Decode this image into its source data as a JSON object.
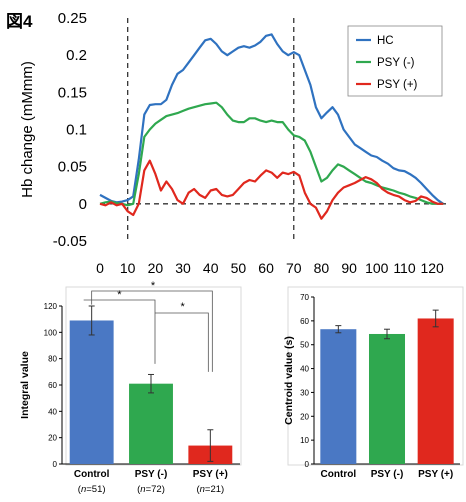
{
  "figure_label": "図4",
  "colors": {
    "hc": "#2f72c0",
    "psy_minus": "#2fa84f",
    "psy_plus": "#e0281e",
    "control_bar": "#4a78c4",
    "axis": "#000000",
    "grid_bar": "#d9d9d9"
  },
  "chart_data": [
    {
      "type": "line",
      "ylabel": "Hb change (mMmm)",
      "xlabel": "",
      "xlim": [
        0,
        125
      ],
      "ylim": [
        -0.05,
        0.25
      ],
      "xticks": [
        "0",
        "10",
        "20",
        "30",
        "40",
        "50",
        "60",
        "70",
        "80",
        "90",
        "100",
        "110",
        "120"
      ],
      "yticks": [
        "-0.05",
        "0",
        "0.05",
        "0.1",
        "0.15",
        "0.2",
        "0.25"
      ],
      "vlines": [
        10,
        70
      ],
      "hline": 0,
      "grid": false,
      "legend_position": "top-right",
      "series": [
        {
          "name": "HC",
          "color": "#2f72c0",
          "x": [
            0,
            2,
            4,
            6,
            8,
            10,
            12,
            14,
            16,
            18,
            20,
            22,
            24,
            26,
            28,
            30,
            32,
            34,
            36,
            38,
            40,
            42,
            44,
            46,
            48,
            50,
            52,
            54,
            56,
            58,
            60,
            62,
            64,
            66,
            68,
            70,
            72,
            74,
            76,
            78,
            80,
            82,
            84,
            86,
            88,
            90,
            92,
            94,
            96,
            98,
            100,
            102,
            104,
            106,
            108,
            110,
            112,
            114,
            116,
            118,
            120,
            122,
            124
          ],
          "y": [
            0.012,
            0.008,
            0.004,
            0.002,
            0.003,
            0.005,
            0.01,
            0.06,
            0.12,
            0.133,
            0.134,
            0.134,
            0.14,
            0.16,
            0.175,
            0.18,
            0.19,
            0.2,
            0.21,
            0.22,
            0.222,
            0.215,
            0.205,
            0.2,
            0.205,
            0.21,
            0.212,
            0.21,
            0.213,
            0.218,
            0.226,
            0.228,
            0.215,
            0.205,
            0.2,
            0.204,
            0.2,
            0.18,
            0.16,
            0.13,
            0.115,
            0.123,
            0.13,
            0.12,
            0.1,
            0.09,
            0.08,
            0.075,
            0.07,
            0.065,
            0.063,
            0.058,
            0.054,
            0.048,
            0.045,
            0.044,
            0.04,
            0.035,
            0.028,
            0.02,
            0.012,
            0.005,
            0.0
          ]
        },
        {
          "name": "PSY (-)",
          "color": "#2fa84f",
          "x": [
            0,
            2,
            4,
            6,
            8,
            10,
            12,
            14,
            16,
            18,
            20,
            22,
            24,
            26,
            28,
            30,
            32,
            34,
            36,
            38,
            40,
            42,
            44,
            46,
            48,
            50,
            52,
            54,
            56,
            58,
            60,
            62,
            64,
            66,
            68,
            70,
            72,
            74,
            76,
            78,
            80,
            82,
            84,
            86,
            88,
            90,
            92,
            94,
            96,
            98,
            100,
            102,
            104,
            106,
            108,
            110,
            112,
            114,
            116,
            118,
            120,
            122,
            124
          ],
          "y": [
            0.0,
            0.002,
            0.003,
            0.001,
            0.0,
            -0.002,
            0.0,
            0.04,
            0.09,
            0.1,
            0.108,
            0.113,
            0.118,
            0.12,
            0.122,
            0.125,
            0.128,
            0.13,
            0.132,
            0.134,
            0.135,
            0.136,
            0.13,
            0.12,
            0.112,
            0.11,
            0.11,
            0.115,
            0.115,
            0.112,
            0.11,
            0.112,
            0.11,
            0.11,
            0.1,
            0.092,
            0.09,
            0.085,
            0.07,
            0.05,
            0.03,
            0.035,
            0.045,
            0.053,
            0.05,
            0.045,
            0.04,
            0.035,
            0.03,
            0.028,
            0.025,
            0.022,
            0.02,
            0.018,
            0.015,
            0.013,
            0.01,
            0.008,
            0.005,
            0.002,
            0.0,
            0.0,
            0.0
          ]
        },
        {
          "name": "PSY (+)",
          "color": "#e0281e",
          "x": [
            0,
            2,
            4,
            6,
            8,
            10,
            12,
            14,
            16,
            18,
            20,
            22,
            24,
            26,
            28,
            30,
            32,
            34,
            36,
            38,
            40,
            42,
            44,
            46,
            48,
            50,
            52,
            54,
            56,
            58,
            60,
            62,
            64,
            66,
            68,
            70,
            72,
            74,
            76,
            78,
            80,
            82,
            84,
            86,
            88,
            90,
            92,
            94,
            96,
            98,
            100,
            102,
            104,
            106,
            108,
            110,
            112,
            114,
            116,
            118,
            120,
            122,
            124
          ],
          "y": [
            0.0,
            -0.002,
            0.002,
            -0.002,
            0.0,
            -0.01,
            -0.015,
            0.0,
            0.045,
            0.058,
            0.04,
            0.018,
            0.03,
            0.02,
            0.005,
            0.0,
            0.015,
            0.02,
            0.012,
            0.008,
            0.018,
            0.02,
            0.012,
            0.01,
            0.012,
            0.02,
            0.028,
            0.032,
            0.03,
            0.038,
            0.045,
            0.042,
            0.035,
            0.042,
            0.04,
            0.043,
            0.038,
            0.015,
            0.0,
            -0.005,
            -0.02,
            -0.01,
            0.005,
            0.015,
            0.022,
            0.025,
            0.028,
            0.032,
            0.036,
            0.033,
            0.028,
            0.02,
            0.015,
            0.012,
            0.01,
            0.005,
            0.002,
            0.004,
            0.01,
            0.008,
            0.003,
            0.0,
            0.0
          ]
        }
      ]
    },
    {
      "type": "bar",
      "ylabel": "Integral value",
      "ylim": [
        0,
        120
      ],
      "yticks": [
        "0",
        "20",
        "40",
        "60",
        "80",
        "100",
        "120"
      ],
      "categories": [
        "Control",
        "PSY (-)",
        "PSY (+)"
      ],
      "sublabels": [
        {
          "pre": "(",
          "n": "n",
          "post": "=51)"
        },
        {
          "pre": "(",
          "n": "n",
          "post": "=72)"
        },
        {
          "pre": "(",
          "n": "n",
          "post": "=21)"
        }
      ],
      "values": [
        109,
        61,
        14
      ],
      "errors": [
        11,
        7,
        12
      ],
      "bar_colors": [
        "#4a78c4",
        "#2fa84f",
        "#e0281e"
      ],
      "significance": [
        {
          "from": 0,
          "to": 1,
          "label": "*"
        },
        {
          "from": 0,
          "to": 2,
          "label": "*"
        },
        {
          "from": 1,
          "to": 2,
          "label": "*"
        }
      ]
    },
    {
      "type": "bar",
      "ylabel": "Centroid value (s)",
      "ylim": [
        0,
        70
      ],
      "yticks": [
        "0",
        "10",
        "20",
        "30",
        "40",
        "50",
        "60",
        "70"
      ],
      "categories": [
        "Control",
        "PSY (-)",
        "PSY (+)"
      ],
      "values": [
        56.5,
        54.5,
        61
      ],
      "errors": [
        1.5,
        2,
        3.5
      ],
      "bar_colors": [
        "#4a78c4",
        "#2fa84f",
        "#e0281e"
      ]
    }
  ]
}
